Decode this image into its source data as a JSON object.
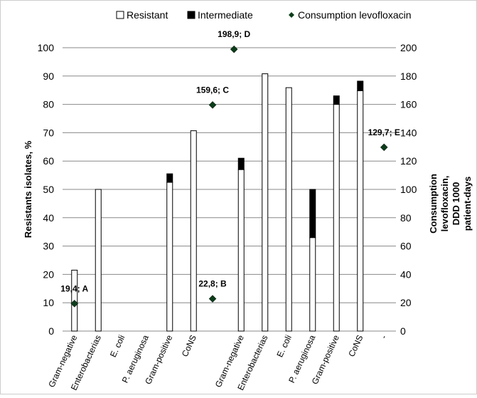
{
  "chart_data": {
    "type": "bar",
    "legend": {
      "position": "top",
      "items": [
        {
          "label": "Resistant",
          "swatch": "white-bar"
        },
        {
          "label": "Intermediate",
          "swatch": "black-bar"
        },
        {
          "label": "Consumption levofloxacin",
          "swatch": "diamond"
        }
      ]
    },
    "y_left": {
      "label": "Resistants isolates, %",
      "min": 0,
      "max": 100,
      "ticks": [
        0,
        10,
        20,
        30,
        40,
        50,
        60,
        70,
        80,
        90,
        100
      ]
    },
    "y_right": {
      "label_lines": [
        "Consumption",
        "levofloxacin,",
        "DDD 1000",
        "patient-days"
      ],
      "min": 0,
      "max": 200,
      "ticks": [
        0,
        20,
        40,
        60,
        80,
        100,
        120,
        140,
        160,
        180,
        200
      ]
    },
    "categories": [
      "Gram-negative",
      "Enterobacterias",
      "E. coli",
      "P. aeruginosa",
      "Gram-positive",
      "CoNS",
      "",
      "Gram-negative",
      "Enterobacterias",
      "E. coli",
      "P. aeruginosa",
      "Gram-positive",
      "CoNS",
      "-"
    ],
    "series": [
      {
        "name": "Resistant",
        "values": [
          21.5,
          50,
          0,
          0,
          52.5,
          70.7,
          0,
          57,
          90.8,
          85.9,
          33,
          80,
          84.8,
          0
        ]
      },
      {
        "name": "Intermediate",
        "values": [
          0,
          0,
          0,
          0,
          3,
          0,
          0,
          4,
          0,
          0,
          17,
          3,
          3.4,
          0
        ]
      }
    ],
    "consumption_points": [
      {
        "x_position": 0.5,
        "value": 19.4,
        "label": "19,4; A"
      },
      {
        "x_position": 6.3,
        "value": 22.8,
        "label": "22,8; B"
      },
      {
        "x_position": 6.3,
        "value": 159.6,
        "label": "159,6; C"
      },
      {
        "x_position": 7.2,
        "value": 198.9,
        "label": "198,9; D"
      },
      {
        "x_position": 13.5,
        "value": 129.7,
        "label": "129,7; E"
      }
    ],
    "colors": {
      "resistant": "#ffffff",
      "intermediate": "#000000",
      "marker": "#0b3d1a",
      "outline": "#000000"
    },
    "grid": true
  }
}
